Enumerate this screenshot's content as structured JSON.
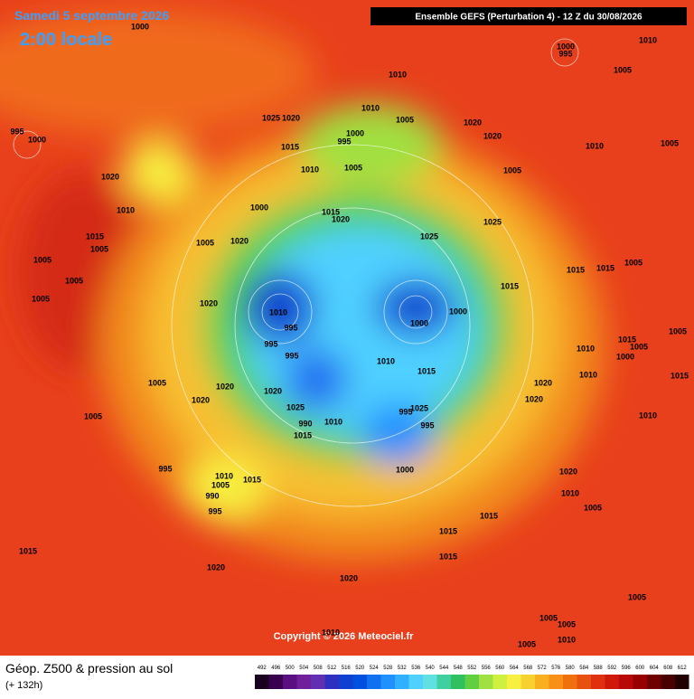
{
  "header": {
    "date": "Samedi 5 septembre 2026",
    "time": "2:00 locale",
    "model": "Ensemble GEFS  (Perturbation 4)  -  12 Z du 30/08/2026"
  },
  "map": {
    "copyright": "Copyright © 2026 Meteociel.fr",
    "isobar_labels": [
      1000,
      1000,
      995,
      1010,
      1005,
      1010,
      1010,
      1005,
      1000,
      995,
      1025,
      1020,
      1020,
      1020,
      1005,
      1015,
      1010,
      1010,
      1005,
      995,
      1000,
      1005,
      1020,
      1010,
      1000,
      1015,
      1020,
      1025,
      1025,
      1005,
      1020,
      1015,
      1005,
      1005,
      1005,
      1005,
      1015,
      1015,
      1005,
      1015,
      1020,
      1010,
      995,
      1000,
      1000,
      995,
      995,
      1010,
      1010,
      1015,
      1005,
      1000,
      1005,
      1010,
      1015,
      1015,
      1005,
      1020,
      1020,
      1020,
      1020,
      1020,
      1025,
      1025,
      995,
      995,
      990,
      1010,
      1015,
      1005,
      1010,
      1000,
      995,
      1020,
      1010,
      1010,
      1015,
      1005,
      990,
      995,
      1005,
      1015,
      1015,
      1015,
      1015,
      1020,
      1020,
      1005,
      1005,
      1005,
      1005,
      1010,
      1010
    ]
  },
  "footer": {
    "title": "Géop. Z500 & pression au sol",
    "lead": "(+ 132h)"
  },
  "legend": {
    "values": [
      492,
      496,
      500,
      504,
      508,
      512,
      516,
      520,
      524,
      528,
      532,
      536,
      540,
      544,
      548,
      552,
      556,
      560,
      564,
      568,
      572,
      576,
      580,
      584,
      588,
      592,
      596,
      600,
      604,
      608,
      612
    ],
    "colors": [
      "#1a0020",
      "#3a0050",
      "#5a1080",
      "#70209a",
      "#6030b0",
      "#3030c0",
      "#1040d0",
      "#0050e0",
      "#1070f0",
      "#2090ff",
      "#30b0ff",
      "#50d0ff",
      "#60e0e0",
      "#40d0a0",
      "#30c060",
      "#60d040",
      "#a0e040",
      "#d0f040",
      "#f8f040",
      "#f8d030",
      "#f8b020",
      "#f89018",
      "#f07010",
      "#e85010",
      "#e03010",
      "#d01808",
      "#b80808",
      "#980000",
      "#700000",
      "#480000",
      "#200000"
    ]
  }
}
